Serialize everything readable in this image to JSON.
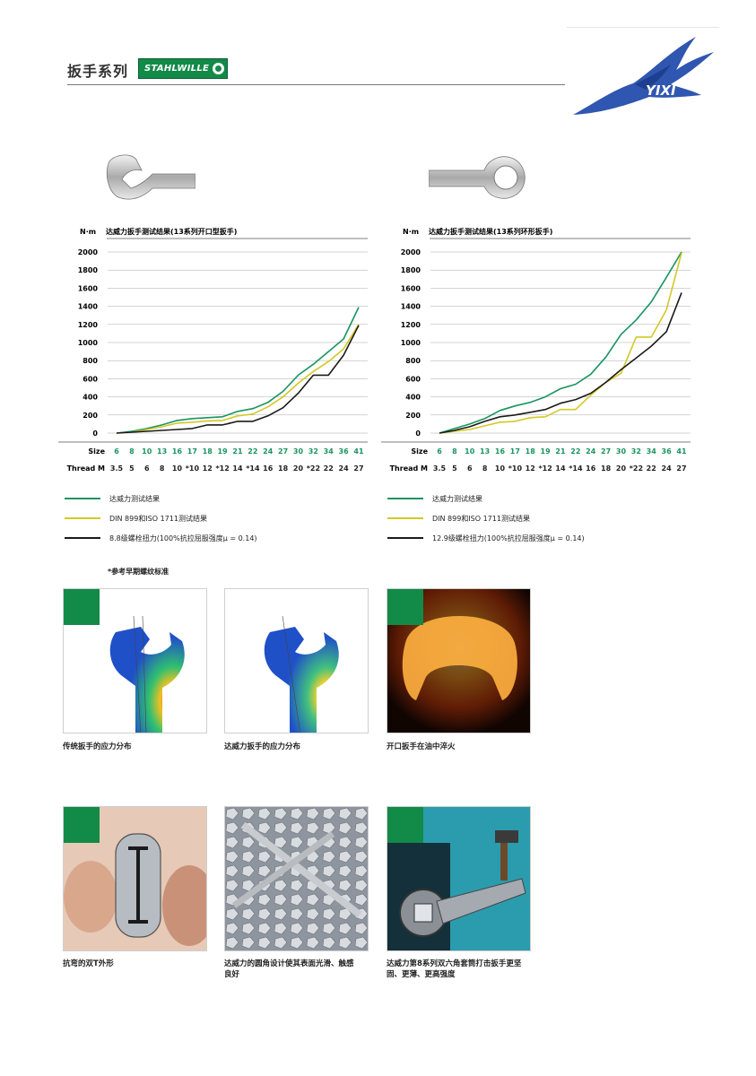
{
  "header": {
    "title": "扳手系列",
    "brand_logo_text": "STAHLWILLE",
    "corner_logo_text": "YIXI"
  },
  "charts_common": {
    "ylabel": "N·m",
    "size_label": "Size",
    "thread_label": "Thread M"
  },
  "chart_data": [
    {
      "type": "line",
      "title": "达威力扳手测试结果(13系列开口型扳手)",
      "ylabel": "N·m",
      "ylim": [
        0,
        2000
      ],
      "yticks": [
        0,
        200,
        400,
        600,
        800,
        1000,
        1200,
        1400,
        1600,
        1800,
        2000
      ],
      "grid": true,
      "categories": [
        "6",
        "8",
        "10",
        "13",
        "16",
        "17",
        "18",
        "19",
        "21",
        "22",
        "24",
        "27",
        "30",
        "32",
        "34",
        "36",
        "41"
      ],
      "thread_m": [
        "3.5",
        "5",
        "6",
        "8",
        "10",
        "*10",
        "12",
        "*12",
        "14",
        "*14",
        "16",
        "18",
        "20",
        "*22",
        "22",
        "24",
        "27"
      ],
      "series": [
        {
          "name": "达威力测试结果",
          "color": "#1a9460",
          "values": [
            0,
            20,
            50,
            90,
            140,
            160,
            170,
            180,
            240,
            270,
            340,
            460,
            640,
            760,
            900,
            1040,
            1390
          ]
        },
        {
          "name": "DIN 899和ISO 1711测试结果",
          "color": "#d4c824",
          "values": [
            0,
            10,
            40,
            70,
            110,
            120,
            135,
            140,
            190,
            210,
            290,
            400,
            550,
            680,
            790,
            930,
            1200
          ]
        },
        {
          "name": "8.8级螺栓扭力(100%抗拉屈服强度μ = 0.14)",
          "color": "#1a1a1a",
          "values": [
            0,
            10,
            20,
            30,
            40,
            50,
            90,
            90,
            130,
            130,
            190,
            280,
            440,
            640,
            640,
            860,
            1190
          ]
        }
      ],
      "legend_position": "bottom"
    },
    {
      "type": "line",
      "title": "达威力扳手测试结果(13系列环形扳手)",
      "ylabel": "N·m",
      "ylim": [
        0,
        2000
      ],
      "yticks": [
        0,
        200,
        400,
        600,
        800,
        1000,
        1200,
        1400,
        1600,
        1800,
        2000
      ],
      "grid": true,
      "categories": [
        "6",
        "8",
        "10",
        "13",
        "16",
        "17",
        "18",
        "19",
        "21",
        "22",
        "24",
        "27",
        "30",
        "32",
        "34",
        "36",
        "41"
      ],
      "thread_m": [
        "3.5",
        "5",
        "6",
        "8",
        "10",
        "*10",
        "12",
        "*12",
        "14",
        "*14",
        "16",
        "18",
        "20",
        "*22",
        "22",
        "24",
        "27"
      ],
      "series": [
        {
          "name": "达威力测试结果",
          "color": "#1a9460",
          "values": [
            0,
            50,
            100,
            160,
            250,
            300,
            340,
            400,
            490,
            540,
            650,
            840,
            1090,
            1250,
            1450,
            1720,
            2000
          ]
        },
        {
          "name": "DIN 899和ISO 1711测试结果",
          "color": "#d4c824",
          "values": [
            0,
            20,
            40,
            80,
            120,
            130,
            170,
            180,
            260,
            260,
            420,
            560,
            660,
            1060,
            1060,
            1360,
            1990
          ]
        },
        {
          "name": "12.9级螺栓扭力(100%抗拉屈服强度μ = 0.14)",
          "color": "#1a1a1a",
          "values": [
            0,
            30,
            70,
            130,
            180,
            200,
            230,
            260,
            330,
            370,
            440,
            560,
            700,
            830,
            960,
            1120,
            1550
          ]
        }
      ],
      "legend_position": "bottom"
    }
  ],
  "note": "*参考早期螺纹标准",
  "photos": [
    {
      "caption": "传统扳手的应力分布"
    },
    {
      "caption": "达威力扳手的应力分布"
    },
    {
      "caption": "开口扳手在油中淬火"
    },
    {
      "caption": "抗弯的双T外形"
    },
    {
      "caption": "达威力的圆角设计使其表面光滑、触感良好"
    },
    {
      "caption": "达威力第8系列双六角套筒打击扳手更坚固、更薄、更高强度"
    }
  ],
  "colors": {
    "brand_green": "#128a48",
    "chart_green": "#1a9460",
    "chart_yellow": "#d4c824",
    "chart_black": "#1a1a1a",
    "eagle_blue": "#2f56b0"
  },
  "icons": [
    "open-end-wrench-icon",
    "ring-wrench-icon",
    "eagle-logo-icon"
  ]
}
